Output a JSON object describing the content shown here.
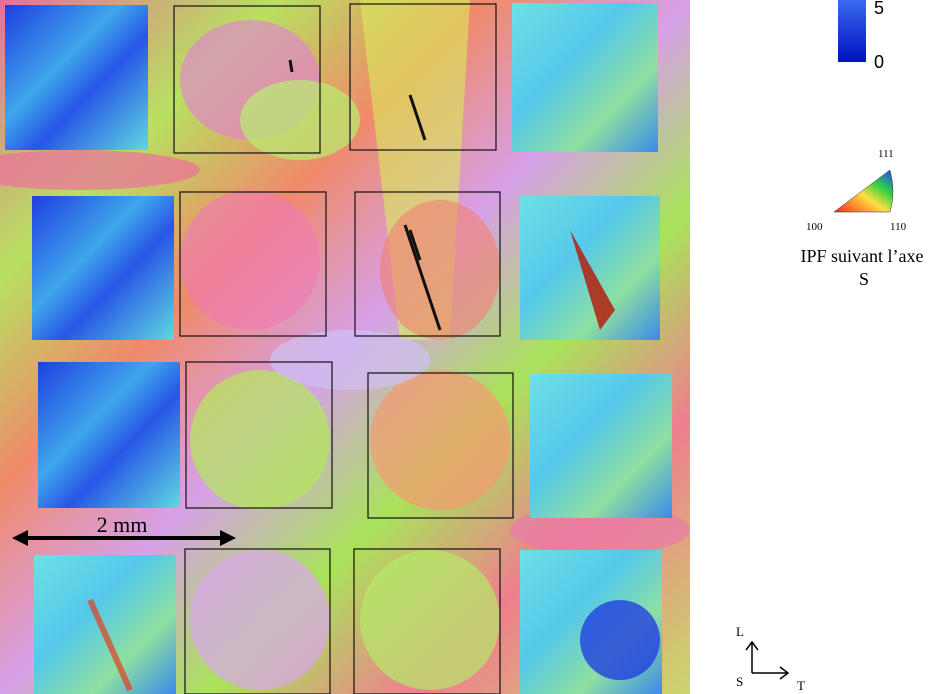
{
  "colorbar": {
    "max_label": "5",
    "min_label": "0"
  },
  "ipf": {
    "corner_111": "111",
    "corner_100": "100",
    "corner_110": "110",
    "caption_line1": "IPF suivant l’axe",
    "caption_line2": "S"
  },
  "scale_bar": "2 mm",
  "axes": {
    "up": "L",
    "origin": "S",
    "right": "T"
  }
}
